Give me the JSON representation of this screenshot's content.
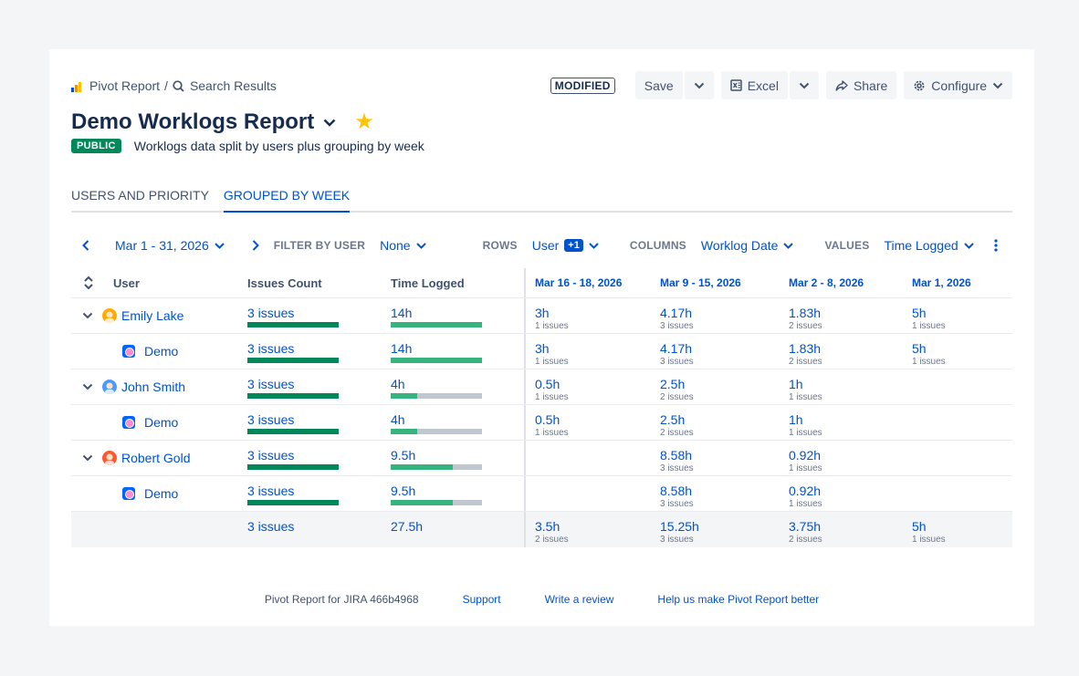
{
  "breadcrumb": {
    "root": "Pivot Report",
    "separator": "/",
    "current": "Search Results"
  },
  "toolbar": {
    "status_badge": "MODIFIED",
    "save_label": "Save",
    "excel_label": "Excel",
    "share_label": "Share",
    "configure_label": "Configure"
  },
  "report": {
    "title": "Demo Worklogs Report",
    "visibility": "PUBLIC",
    "description": "Worklogs data split by users plus grouping by week"
  },
  "tabs": [
    {
      "label": "USERS AND PRIORITY",
      "active": false
    },
    {
      "label": "GROUPED BY WEEK",
      "active": true
    }
  ],
  "filters": {
    "date_range": "Mar 1 - 31, 2026",
    "filter_by_user_label": "FILTER BY USER",
    "filter_by_user_value": "None",
    "rows_label": "ROWS",
    "rows_value": "User",
    "rows_extra": "+1",
    "columns_label": "COLUMNS",
    "columns_value": "Worklog Date",
    "values_label": "VALUES",
    "values_value": "Time Logged"
  },
  "table": {
    "headers": {
      "user": "User",
      "issues": "Issues Count",
      "time": "Time Logged",
      "w1": "Mar 16 - 18, 2026",
      "w2": "Mar 9 - 15, 2026",
      "w3": "Mar 2 - 8, 2026",
      "w4": "Mar 1, 2026"
    },
    "rows": [
      {
        "name": "Emily Lake",
        "issues": "3 issues",
        "issues_bar": 1.0,
        "time": "14h",
        "time_bar": 1.0,
        "w1": "3h",
        "w1s": "1 issues",
        "w2": "4.17h",
        "w2s": "3 issues",
        "w3": "1.83h",
        "w3s": "2 issues",
        "w4": "5h",
        "w4s": "1 issues"
      },
      {
        "name": "Demo",
        "issues": "3 issues",
        "issues_bar": 1.0,
        "time": "14h",
        "time_bar": 1.0,
        "w1": "3h",
        "w1s": "1 issues",
        "w2": "4.17h",
        "w2s": "3 issues",
        "w3": "1.83h",
        "w3s": "2 issues",
        "w4": "5h",
        "w4s": "1 issues"
      },
      {
        "name": "John Smith",
        "issues": "3 issues",
        "issues_bar": 1.0,
        "time": "4h",
        "time_bar": 0.29,
        "w1": "0.5h",
        "w1s": "1 issues",
        "w2": "2.5h",
        "w2s": "2 issues",
        "w3": "1h",
        "w3s": "1 issues"
      },
      {
        "name": "Demo",
        "issues": "3 issues",
        "issues_bar": 1.0,
        "time": "4h",
        "time_bar": 0.29,
        "w1": "0.5h",
        "w1s": "1 issues",
        "w2": "2.5h",
        "w2s": "2 issues",
        "w3": "1h",
        "w3s": "1 issues"
      },
      {
        "name": "Robert Gold",
        "issues": "3 issues",
        "issues_bar": 1.0,
        "time": "9.5h",
        "time_bar": 0.68,
        "w2": "8.58h",
        "w2s": "3 issues",
        "w3": "0.92h",
        "w3s": "1 issues"
      },
      {
        "name": "Demo",
        "issues": "3 issues",
        "issues_bar": 1.0,
        "time": "9.5h",
        "time_bar": 0.68,
        "w2": "8.58h",
        "w2s": "3 issues",
        "w3": "0.92h",
        "w3s": "1 issues"
      }
    ],
    "total": {
      "issues": "3 issues",
      "time": "27.5h",
      "w1": "3.5h",
      "w1s": "2 issues",
      "w2": "15.25h",
      "w2s": "3 issues",
      "w3": "3.75h",
      "w3s": "2 issues",
      "w4": "5h",
      "w4s": "1 issues"
    }
  },
  "footer": {
    "version": "Pivot Report for JIRA 466b4968",
    "support": "Support",
    "review": "Write a review",
    "feedback": "Help us make Pivot Report better"
  },
  "colors": {
    "accent": "#0052cc",
    "public": "#00875a",
    "bar_dark": "#00875a",
    "bar_light": "#36b37e",
    "star": "#ffc400"
  }
}
